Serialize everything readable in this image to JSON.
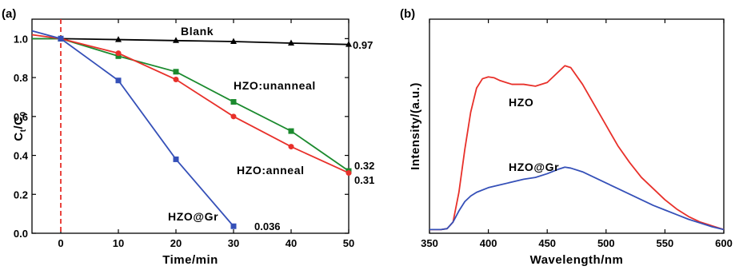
{
  "chart_data": [
    {
      "panel_label": "(a)",
      "type": "line",
      "xlabel": "Time/min",
      "ylabel": "C",
      "ylabel_sub1": "t",
      "ylabel_sep": "/C",
      "ylabel_sub2": "0",
      "xlim": [
        -5,
        50
      ],
      "ylim": [
        0,
        1.1
      ],
      "xticks": [
        0,
        10,
        20,
        30,
        40,
        50
      ],
      "yticks": [
        "0.0",
        "0.2",
        "0.4",
        "0.6",
        "0.8",
        "1.0"
      ],
      "vline": {
        "x": 0,
        "color": "#e8302a",
        "style": "dashed"
      },
      "series": [
        {
          "name": "Blank",
          "color": "#000000",
          "marker": "triangle",
          "x": [
            -5,
            0,
            10,
            20,
            30,
            40,
            50
          ],
          "y": [
            1.0,
            1.0,
            0.995,
            0.99,
            0.985,
            0.977,
            0.97
          ],
          "end_label": "0.97"
        },
        {
          "name": "HZO:unanneal",
          "color": "#1b8a2e",
          "marker": "square",
          "x": [
            -5,
            0,
            10,
            20,
            30,
            40,
            50
          ],
          "y": [
            1.0,
            1.0,
            0.91,
            0.83,
            0.675,
            0.525,
            0.32
          ],
          "end_label": "0.32"
        },
        {
          "name": "HZO:anneal",
          "color": "#e8302a",
          "marker": "circle",
          "x": [
            -5,
            0,
            10,
            20,
            30,
            40,
            50
          ],
          "y": [
            1.02,
            1.0,
            0.925,
            0.79,
            0.6,
            0.445,
            0.31
          ],
          "end_label": "0.31"
        },
        {
          "name": "HZO@Gr",
          "color": "#3550b8",
          "marker": "square",
          "x": [
            -5,
            0,
            10,
            20,
            30
          ],
          "y": [
            1.04,
            1.0,
            0.785,
            0.38,
            0.036
          ],
          "end_label": "0.036"
        }
      ],
      "annotations": [
        "Blank",
        "HZO:unanneal",
        "HZO:anneal",
        "HZO@Gr"
      ]
    },
    {
      "panel_label": "(b)",
      "type": "line",
      "xlabel": "Wavelength/nm",
      "ylabel": "Intensity/(a.u.)",
      "xlim": [
        350,
        600
      ],
      "ylim": [
        0,
        1.15
      ],
      "xticks": [
        350,
        400,
        450,
        500,
        550,
        600
      ],
      "series": [
        {
          "name": "HZO",
          "color": "#e8302a",
          "x": [
            350,
            360,
            365,
            370,
            375,
            380,
            385,
            390,
            395,
            400,
            405,
            410,
            420,
            430,
            440,
            450,
            460,
            465,
            470,
            480,
            490,
            500,
            510,
            520,
            530,
            540,
            550,
            560,
            570,
            580,
            590,
            600
          ],
          "y": [
            0.02,
            0.02,
            0.025,
            0.06,
            0.22,
            0.45,
            0.65,
            0.78,
            0.83,
            0.84,
            0.835,
            0.82,
            0.8,
            0.8,
            0.79,
            0.81,
            0.87,
            0.9,
            0.89,
            0.8,
            0.69,
            0.58,
            0.47,
            0.38,
            0.3,
            0.24,
            0.18,
            0.13,
            0.09,
            0.06,
            0.04,
            0.02
          ]
        },
        {
          "name": "HZO@Gr",
          "color": "#3550b8",
          "x": [
            350,
            360,
            365,
            370,
            375,
            380,
            385,
            390,
            400,
            410,
            420,
            430,
            440,
            450,
            460,
            465,
            470,
            480,
            490,
            500,
            510,
            520,
            530,
            540,
            550,
            560,
            570,
            580,
            590,
            600
          ],
          "y": [
            0.02,
            0.02,
            0.025,
            0.06,
            0.12,
            0.17,
            0.2,
            0.22,
            0.245,
            0.26,
            0.275,
            0.29,
            0.3,
            0.32,
            0.345,
            0.355,
            0.35,
            0.33,
            0.3,
            0.27,
            0.24,
            0.21,
            0.18,
            0.15,
            0.125,
            0.1,
            0.075,
            0.055,
            0.035,
            0.02
          ]
        }
      ],
      "annotations": [
        "HZO",
        "HZO@Gr"
      ]
    }
  ]
}
